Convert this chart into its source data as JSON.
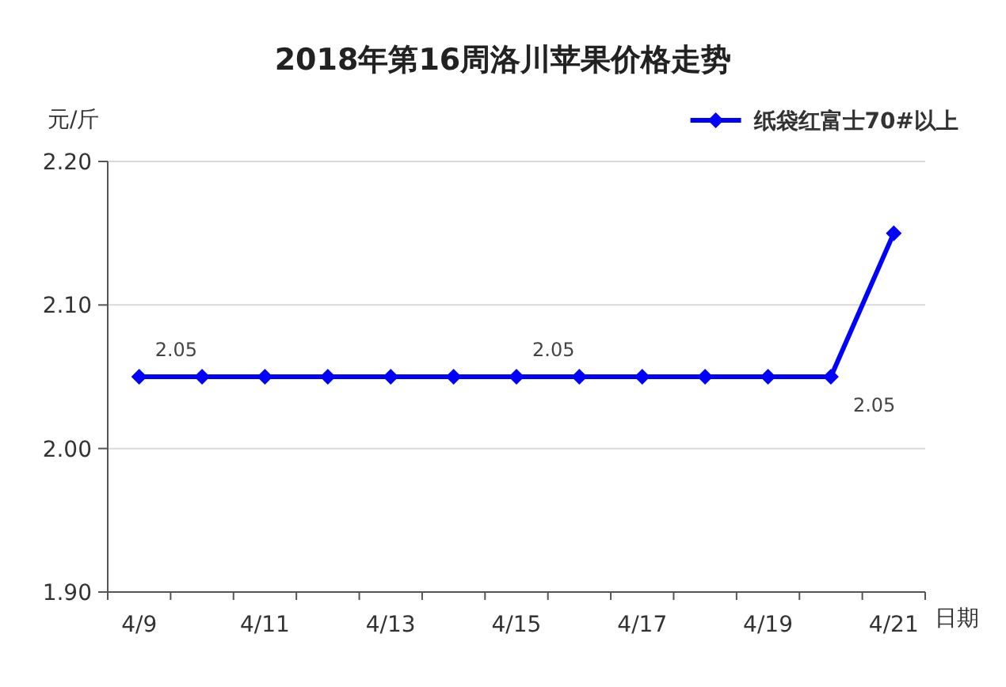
{
  "chart_data": {
    "type": "line",
    "title": "2018年第16周洛川苹果价格走势",
    "xlabel": "日期",
    "ylabel": "元/斤",
    "categories": [
      "4/9",
      null,
      "4/11",
      null,
      "4/13",
      null,
      "4/15",
      null,
      "4/17",
      null,
      "4/19",
      null,
      "4/21"
    ],
    "series": [
      {
        "name": "纸袋红富士70#以上",
        "color": "#0000ff",
        "values": [
          2.05,
          2.05,
          2.05,
          2.05,
          2.05,
          2.05,
          2.05,
          2.05,
          2.05,
          2.05,
          2.05,
          2.05,
          2.15
        ],
        "value_labels": [
          "2.05",
          null,
          null,
          null,
          null,
          null,
          "2.05",
          null,
          null,
          null,
          null,
          "2.05",
          null
        ]
      }
    ],
    "ylim": [
      1.9,
      2.2
    ],
    "yticks": [
      {
        "value": 1.9,
        "label": "1.90"
      },
      {
        "value": 2.0,
        "label": "2.00"
      },
      {
        "value": 2.1,
        "label": "2.10"
      },
      {
        "value": 2.2,
        "label": "2.20"
      }
    ],
    "grid": "y",
    "legend": "top right",
    "marker": "diamond",
    "line_style": "solid"
  }
}
